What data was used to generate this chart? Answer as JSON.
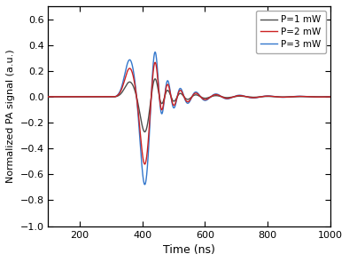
{
  "xlabel": "Time (ns)",
  "ylabel": "Normalized PA signal (a.u.)",
  "xlim": [
    100,
    1000
  ],
  "ylim": [
    -1.0,
    0.7
  ],
  "yticks": [
    -1.0,
    -0.8,
    -0.6,
    -0.4,
    -0.2,
    0.0,
    0.2,
    0.4,
    0.6
  ],
  "xticks": [
    200,
    400,
    600,
    800,
    1000
  ],
  "legend": [
    "P=1 mW",
    "P=2 mW",
    "P=3 mW"
  ],
  "colors": [
    "#4d4d4d",
    "#cc2222",
    "#3377cc"
  ],
  "linewidths": [
    1.0,
    1.0,
    1.0
  ],
  "signal": {
    "t_onset": 315,
    "gaussians_p1": {
      "peaks": [
        360,
        408,
        440,
        460,
        480,
        500,
        520,
        545,
        570,
        600,
        635,
        670,
        710,
        755,
        800,
        850,
        900,
        950
      ],
      "amps": [
        0.115,
        -0.275,
        0.165,
        -0.085,
        0.06,
        -0.042,
        0.03,
        -0.022,
        0.016,
        -0.012,
        0.009,
        -0.007,
        0.005,
        -0.004,
        0.003,
        -0.002,
        0.002,
        -0.001
      ],
      "widths": [
        16,
        14,
        11,
        9,
        9,
        9,
        9,
        10,
        11,
        12,
        13,
        14,
        15,
        17,
        19,
        22,
        25,
        28
      ]
    },
    "scale_p2": 1.92,
    "scale_p3": 2.5
  }
}
